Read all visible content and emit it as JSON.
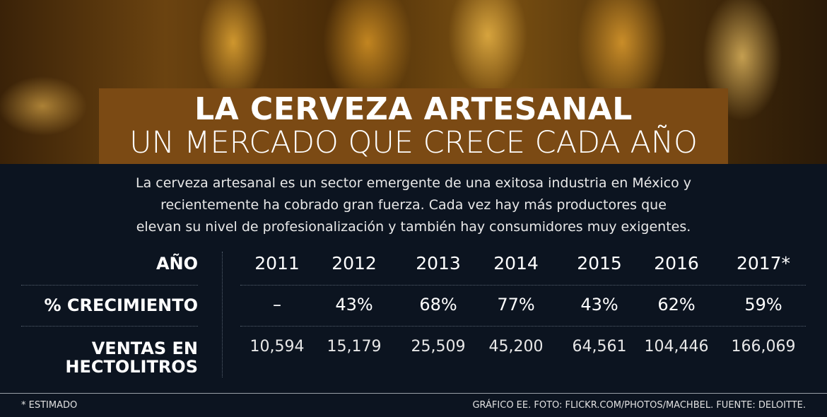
{
  "header": {
    "title": "LA CERVEZA ARTESANAL",
    "subtitle": "UN MERCADO QUE CRECE CADA AÑO"
  },
  "intro": [
    "La cerveza artesanal es un sector emergente  de una exitosa industria en México y",
    "recientemente ha cobrado gran fuerza. Cada vez hay más productores que",
    "elevan su nivel de profesionalización y también hay consumidores muy exigentes."
  ],
  "table": {
    "rows": [
      {
        "label": "AÑO",
        "cells": [
          "2011",
          "2012",
          "2013",
          "2014",
          "2015",
          "2016",
          "2017*"
        ]
      },
      {
        "label": "% CRECIMIENTO",
        "cells": [
          "–",
          "43%",
          "68%",
          "77%",
          "43%",
          "62%",
          "59%"
        ]
      },
      {
        "label": "VENTAS EN HECTOLITROS",
        "cells": [
          "10,594",
          "15,179",
          "25,509",
          "45,200",
          "64,561",
          "104,446",
          "166,069"
        ]
      }
    ]
  },
  "footer": {
    "note": "* ESTIMADO",
    "credits": "GRÁFICO EE. FOTO: FLICKR.COM/PHOTOS/MACHBEL. FUENTE: DELOITTE."
  }
}
